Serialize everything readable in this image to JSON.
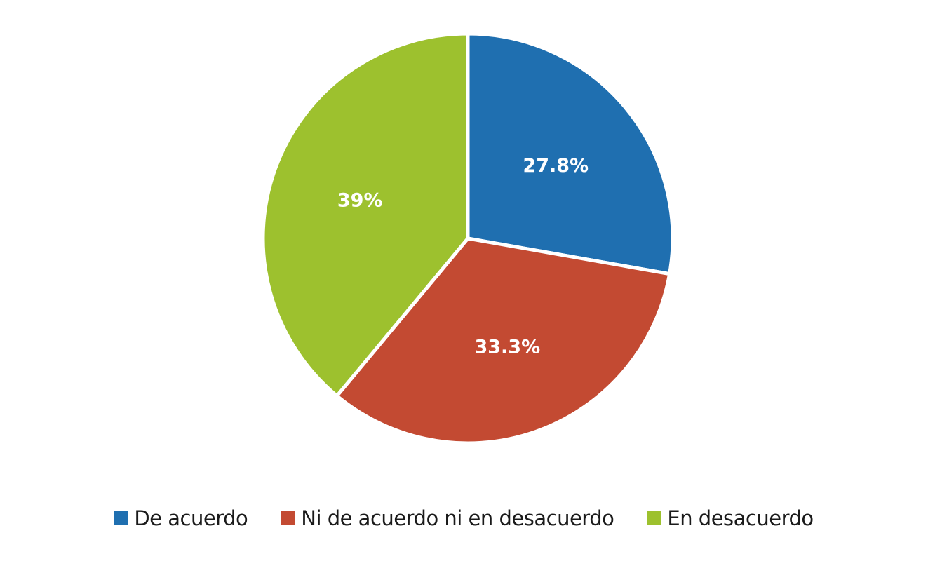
{
  "chart_data": {
    "type": "pie",
    "title": "",
    "categories": [
      "De acuerdo",
      "Ni de acuerdo ni en desacuerdo",
      "En desacuerdo"
    ],
    "values": [
      27.8,
      33.3,
      39
    ],
    "labels": [
      "27.8%",
      "33.3%",
      "39%"
    ],
    "colors": [
      "#1f6fb0",
      "#c34a32",
      "#9dc12e"
    ],
    "start_angle": "12 o'clock, clockwise",
    "legend_position": "bottom"
  },
  "legend": {
    "items": [
      {
        "label": "De acuerdo",
        "color": "#1f6fb0"
      },
      {
        "label": "Ni de acuerdo ni en desacuerdo",
        "color": "#c34a32"
      },
      {
        "label": "En desacuerdo",
        "color": "#9dc12e"
      }
    ]
  }
}
